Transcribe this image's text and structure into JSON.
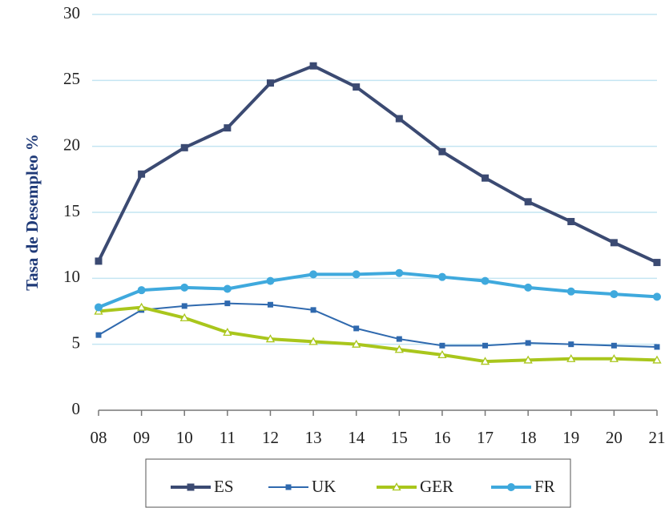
{
  "chart_data": {
    "type": "line",
    "y_label": "Tasa de Desempleo %",
    "categories": [
      "08",
      "09",
      "10",
      "11",
      "12",
      "13",
      "14",
      "15",
      "16",
      "17",
      "18",
      "19",
      "20",
      "21"
    ],
    "series": [
      {
        "name": "ES",
        "color": "#3b4a72",
        "marker": "square",
        "values": [
          11.3,
          17.9,
          19.9,
          21.4,
          24.8,
          26.1,
          24.5,
          22.1,
          19.6,
          17.6,
          15.8,
          14.3,
          12.7,
          11.2
        ]
      },
      {
        "name": "UK",
        "color": "#2f69ae",
        "marker": "small-square",
        "values": [
          5.7,
          7.6,
          7.9,
          8.1,
          8.0,
          7.6,
          6.2,
          5.4,
          4.9,
          4.9,
          5.1,
          5.0,
          4.9,
          4.8
        ]
      },
      {
        "name": "GER",
        "color": "#a9c61c",
        "marker": "triangle",
        "values": [
          7.5,
          7.8,
          7.0,
          5.9,
          5.4,
          5.2,
          5.0,
          4.6,
          4.2,
          3.7,
          3.8,
          3.9,
          3.9,
          3.8
        ]
      },
      {
        "name": "FR",
        "color": "#3fa9dd",
        "marker": "circle",
        "values": [
          7.8,
          9.1,
          9.3,
          9.2,
          9.8,
          10.3,
          10.3,
          10.4,
          10.1,
          9.8,
          9.3,
          9.0,
          8.8,
          8.6
        ]
      }
    ],
    "ylim": [
      0,
      30
    ],
    "yticks": [
      0,
      5,
      10,
      15,
      20,
      25,
      30
    ],
    "grid": true,
    "legend": "bottom"
  }
}
